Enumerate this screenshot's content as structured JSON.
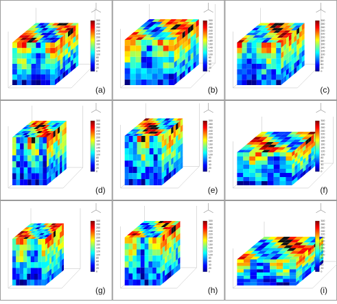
{
  "panels": [
    {
      "label": "(a)"
    },
    {
      "label": "(b)"
    },
    {
      "label": "(c)"
    },
    {
      "label": "(d)"
    },
    {
      "label": "(e)"
    },
    {
      "label": "(f)"
    },
    {
      "label": "(g)"
    },
    {
      "label": "(h)"
    },
    {
      "label": "(i)"
    }
  ],
  "colorbar": {
    "ticks": [
      "300",
      "280",
      "260",
      "240",
      "220",
      "200",
      "180",
      "160",
      "140",
      "120",
      "100",
      "80",
      "60",
      "40",
      "20",
      "0"
    ]
  }
}
